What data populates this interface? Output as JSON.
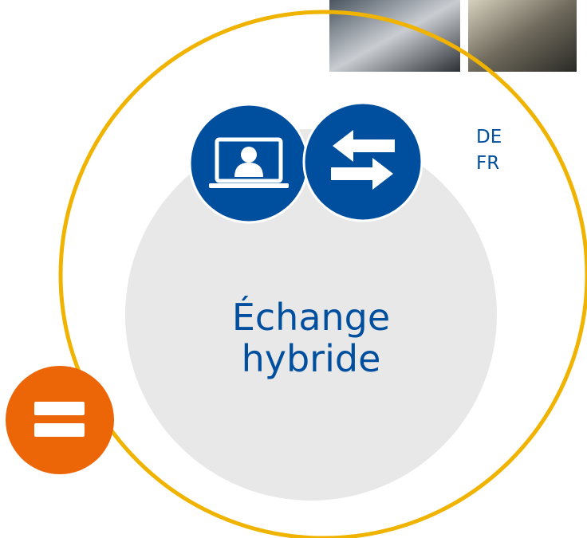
{
  "languages": [
    "DE",
    "FR"
  ],
  "heading": {
    "lines": [
      "Échange",
      "hybride"
    ]
  }
}
